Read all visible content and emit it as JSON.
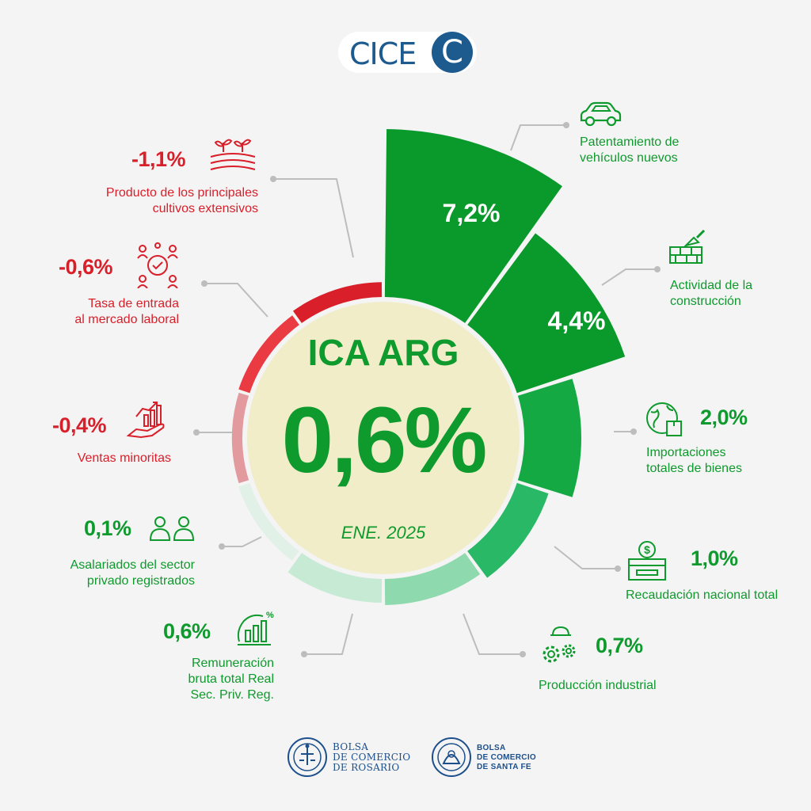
{
  "header": {
    "logo_text": "CICE",
    "logo_badge": "C"
  },
  "center": {
    "title": "ICA ARG",
    "value": "0,6%",
    "period": "ENE. 2025"
  },
  "colors": {
    "green_strong": "#0a9a2c",
    "green_mid": "#15a944",
    "green_light": "#28b866",
    "green_pale": "#8fd9ae",
    "red_strong": "#d81f2a",
    "red_mid": "#ea3a42",
    "red_pale": "#e39a9f",
    "center_fill": "#f1edc9"
  },
  "chart_data": {
    "type": "radial-bar",
    "title": "ICA ARG",
    "total": 0.6,
    "period": "ENE. 2025",
    "unit": "%",
    "series": [
      {
        "label": "Patentamiento de vehículos nuevos",
        "value": 7.2,
        "display": "7,2%",
        "icon": "car-icon"
      },
      {
        "label": "Actividad de la construcción",
        "value": 4.4,
        "display": "4,4%",
        "icon": "bricks-trowel-icon"
      },
      {
        "label": "Importaciones totales de bienes",
        "value": 2.0,
        "display": "2,0%",
        "icon": "globe-box-icon"
      },
      {
        "label": "Recaudación nacional total",
        "value": 1.0,
        "display": "1,0%",
        "icon": "cash-register-icon"
      },
      {
        "label": "Producción industrial",
        "value": 0.7,
        "display": "0,7%",
        "icon": "gears-helmet-icon"
      },
      {
        "label": "Remuneración bruta total Real Sec. Priv. Reg.",
        "value": 0.6,
        "display": "0,6%",
        "icon": "salary-chart-icon"
      },
      {
        "label": "Asalariados del sector privado registrados",
        "value": 0.1,
        "display": "0,1%",
        "icon": "people-icon"
      },
      {
        "label": "Ventas minoritas",
        "value": -0.4,
        "display": "-0,4%",
        "icon": "sales-hand-icon"
      },
      {
        "label": "Tasa de entrada al mercado laboral",
        "value": -0.6,
        "display": "-0,6%",
        "icon": "network-people-icon"
      },
      {
        "label": "Producto de los principales cultivos extensivos",
        "value": -1.1,
        "display": "-1,1%",
        "icon": "crops-field-icon"
      }
    ]
  },
  "labels": {
    "patentamiento": [
      "Patentamiento de",
      "vehículos nuevos"
    ],
    "construccion": [
      "Actividad de la",
      "construcción"
    ],
    "importaciones": [
      "Importaciones",
      "totales de bienes"
    ],
    "recaudacion": "Recaudación nacional total",
    "produccion": "Producción industrial",
    "remuneracion": [
      "Remuneración",
      "bruta total Real",
      "Sec. Priv. Reg."
    ],
    "asalariados": [
      "Asalariados del sector",
      "privado registrados"
    ],
    "ventas": "Ventas minoritas",
    "tasa": [
      "Tasa de entrada",
      "al mercado laboral"
    ],
    "producto": [
      "Producto de los principales",
      "cultivos extensivos"
    ]
  },
  "footer": {
    "rosario": [
      "BOLSA",
      "DE COMERCIO",
      "DE ROSARIO"
    ],
    "santafe": [
      "BOLSA",
      "DE COMERCIO",
      "DE SANTA FE"
    ]
  }
}
